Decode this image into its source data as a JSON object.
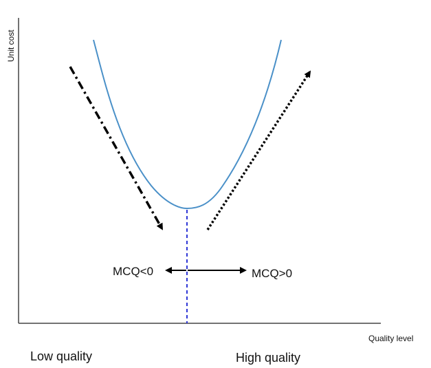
{
  "labels": {
    "y_axis": "Unit cost",
    "x_axis": "Quality level",
    "mcq_negative": "MCQ<0",
    "mcq_positive": "MCQ>0",
    "low_quality": "Low quality",
    "high_quality": "High quality"
  },
  "colors": {
    "curve": "#4a90c8",
    "optimum_line": "#2e36d6",
    "axes": "#444444",
    "arrows": "#000000"
  },
  "arrow_styles": {
    "left_trend": "dash-dot",
    "right_trend": "dotted",
    "mcq_arrows": "solid"
  }
}
